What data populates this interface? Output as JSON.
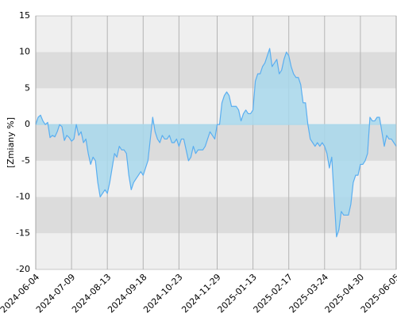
{
  "chart_data": {
    "type": "area",
    "y_label": "[Zmiany %]",
    "ylim": [
      -20,
      15
    ],
    "yticks": [
      -20,
      -15,
      -10,
      -5,
      0,
      5,
      10,
      15
    ],
    "line_color": "#5aaef0",
    "fill_color": "#a8d8ec",
    "grid": true,
    "categories": [
      "2024-06-04",
      null,
      null,
      null,
      null,
      null,
      null,
      null,
      null,
      null,
      null,
      null,
      null,
      null,
      null,
      "2024-07-09",
      null,
      null,
      null,
      null,
      null,
      null,
      null,
      null,
      null,
      null,
      null,
      null,
      null,
      null,
      "2024-08-13",
      null,
      null,
      null,
      null,
      null,
      null,
      null,
      null,
      null,
      null,
      null,
      null,
      null,
      null,
      "2024-09-18",
      null,
      null,
      null,
      null,
      null,
      null,
      null,
      null,
      null,
      null,
      null,
      null,
      null,
      null,
      "2024-10-23",
      null,
      null,
      null,
      null,
      null,
      null,
      null,
      null,
      null,
      null,
      null,
      null,
      null,
      null,
      null,
      "2024-11-29",
      null,
      null,
      null,
      null,
      null,
      null,
      null,
      null,
      null,
      null,
      null,
      null,
      null,
      null,
      "2025-01-13",
      null,
      null,
      null,
      null,
      null,
      null,
      null,
      null,
      null,
      null,
      null,
      null,
      null,
      null,
      "2025-02-17",
      null,
      null,
      null,
      null,
      null,
      null,
      null,
      null,
      null,
      null,
      null,
      null,
      null,
      null,
      "2025-03-24",
      null,
      null,
      null,
      null,
      null,
      null,
      null,
      null,
      null,
      null,
      null,
      null,
      null,
      null,
      "2025-04-30",
      null,
      null,
      null,
      null,
      null,
      null,
      null,
      null,
      null,
      null,
      null,
      null,
      null,
      null,
      "2025-06-05"
    ],
    "values": [
      0,
      1,
      1.3,
      0.5,
      0,
      0.3,
      -1.8,
      -1.5,
      -1.7,
      -1,
      0,
      -0.3,
      -2.2,
      -1.5,
      -1.8,
      -2.3,
      -2,
      0,
      -1.5,
      -1,
      -2.5,
      -2,
      -4,
      -5.5,
      -4.5,
      -5,
      -8,
      -10,
      -9.5,
      -9,
      -9.5,
      -8,
      -6,
      -4,
      -4.5,
      -3,
      -3.5,
      -3.5,
      -4,
      -7,
      -9,
      -8,
      -7.5,
      -7,
      -6.5,
      -7,
      -6,
      -5,
      -2,
      1,
      -1,
      -2,
      -2.5,
      -1.5,
      -2,
      -2,
      -1.5,
      -2.5,
      -2.5,
      -2,
      -3,
      -2,
      -2,
      -3.5,
      -5,
      -4.5,
      -3,
      -4,
      -3.5,
      -3.5,
      -3.5,
      -3,
      -2,
      -1,
      -1.5,
      -2,
      0,
      0,
      3,
      4,
      4.5,
      4,
      2.5,
      2.5,
      2.5,
      2,
      0.5,
      1.5,
      2,
      1.5,
      1.5,
      2,
      6,
      7,
      7,
      8,
      8.5,
      9.5,
      10.5,
      8,
      8.5,
      9,
      7,
      7.5,
      9,
      10,
      9.5,
      8,
      7,
      6.5,
      6.5,
      5.5,
      3,
      3,
      0,
      -2,
      -2.5,
      -3,
      -2.5,
      -3,
      -2.5,
      -3,
      -4,
      -6,
      -4.5,
      -10,
      -15.5,
      -14.5,
      -12,
      -12.5,
      -12.5,
      -12.5,
      -11,
      -8,
      -7,
      -7,
      -5.5,
      -5.5,
      -5,
      -4,
      1,
      0.5,
      0.5,
      1,
      1,
      -1,
      -3,
      -1.5,
      -2,
      -2,
      -2.5,
      -3
    ]
  }
}
